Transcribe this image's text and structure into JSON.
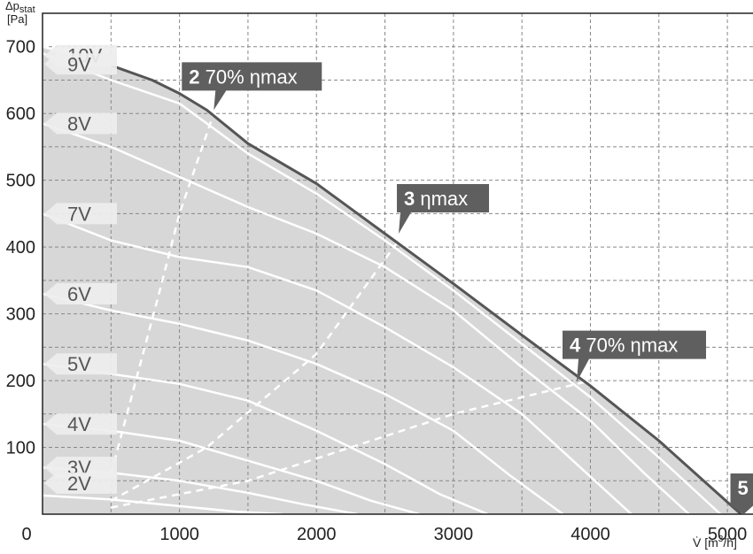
{
  "chart_data": {
    "type": "line",
    "xlabel": "V̇ [m³/h]",
    "ylabel": "Δp_stat [Pa]",
    "ylabel_top": "Δp",
    "ylabel_sub": "stat",
    "ylabel_unit": "[Pa]",
    "xlabel_prefix": "V̇ [m",
    "xlabel_sup": "3",
    "xlabel_suffix": "/h]",
    "xlim": [
      0,
      5200
    ],
    "ylim": [
      0,
      750
    ],
    "x_ticks": [
      0,
      1000,
      2000,
      3000,
      4000,
      5000
    ],
    "x_tick_labels": [
      "0",
      "1000",
      "2000",
      "3000",
      "4000",
      "5000"
    ],
    "y_ticks": [
      0,
      100,
      200,
      300,
      400,
      500,
      600,
      700
    ],
    "y_tick_labels": [
      "",
      "100",
      "200",
      "300",
      "400",
      "500",
      "600",
      "700"
    ],
    "grid": true,
    "envelope": {
      "x": [
        0,
        500,
        800,
        1000,
        1200,
        1500,
        2000,
        2500,
        3000,
        3500,
        4000,
        4500,
        5000,
        5100
      ],
      "y": [
        700,
        672,
        650,
        630,
        605,
        555,
        495,
        420,
        345,
        268,
        192,
        110,
        18,
        0
      ]
    },
    "series": [
      {
        "label": "10V",
        "x": [
          0,
          500,
          800,
          1000,
          1200,
          1500,
          2000,
          2500,
          3000,
          3500,
          4000,
          4500,
          5000,
          5100
        ],
        "y": [
          700,
          672,
          650,
          630,
          605,
          555,
          495,
          420,
          345,
          268,
          192,
          110,
          18,
          0
        ]
      },
      {
        "label": "9V",
        "x": [
          0,
          500,
          1000,
          1500,
          2000,
          2500,
          3000,
          3500,
          4000,
          4500,
          4950
        ],
        "y": [
          690,
          650,
          615,
          540,
          480,
          410,
          335,
          255,
          175,
          85,
          0
        ]
      },
      {
        "label": "8V",
        "x": [
          0,
          500,
          1000,
          1500,
          2000,
          2500,
          3000,
          3500,
          4000,
          4400,
          4720
        ],
        "y": [
          585,
          550,
          505,
          460,
          420,
          370,
          305,
          220,
          140,
          60,
          0
        ]
      },
      {
        "label": "7V",
        "x": [
          0,
          500,
          1000,
          1500,
          2000,
          2500,
          3000,
          3500,
          3900,
          4300
        ],
        "y": [
          450,
          410,
          385,
          370,
          335,
          280,
          220,
          150,
          75,
          0
        ]
      },
      {
        "label": "6V",
        "x": [
          0,
          500,
          1000,
          1500,
          2000,
          2500,
          3000,
          3400,
          3800
        ],
        "y": [
          330,
          305,
          285,
          260,
          225,
          180,
          125,
          60,
          0
        ]
      },
      {
        "label": "5V",
        "x": [
          0,
          500,
          1000,
          1500,
          2000,
          2500,
          2900,
          3250
        ],
        "y": [
          225,
          210,
          195,
          170,
          125,
          75,
          30,
          0
        ]
      },
      {
        "label": "4V",
        "x": [
          0,
          500,
          1000,
          1500,
          2000,
          2400,
          2750
        ],
        "y": [
          135,
          125,
          110,
          80,
          50,
          20,
          0
        ]
      },
      {
        "label": "3V",
        "x": [
          0,
          500,
          1000,
          1500,
          1900,
          2300
        ],
        "y": [
          70,
          62,
          50,
          32,
          15,
          0
        ]
      },
      {
        "label": "2V",
        "x": [
          0,
          500,
          1000,
          1400,
          1750
        ],
        "y": [
          28,
          22,
          12,
          4,
          0
        ]
      }
    ],
    "efficiency_lines": [
      {
        "x": [
          500,
          850,
          1000,
          1250
        ],
        "y": [
          60,
          330,
          450,
          600
        ]
      },
      {
        "x": [
          500,
          1200,
          2000,
          2600
        ],
        "y": [
          20,
          100,
          240,
          410
        ]
      },
      {
        "x": [
          500,
          1500,
          3000,
          4000
        ],
        "y": [
          10,
          50,
          150,
          200
        ]
      }
    ],
    "operating_points": [
      {
        "num": "2",
        "text": " 70% ηmax",
        "x": 1250,
        "y": 605
      },
      {
        "num": "3",
        "text": " ηmax",
        "x": 2600,
        "y": 420
      },
      {
        "num": "4",
        "text": " 70% ηmax",
        "x": 3900,
        "y": 198
      },
      {
        "num": "5",
        "text": "",
        "x": 5100,
        "y": 0
      }
    ],
    "colors": {
      "envelope_fill": "#d7d7d7",
      "curve": "#ffffff",
      "envelope_line": "#555555",
      "callout": "#5f5f5f",
      "voltage_tag": "#eeeeee",
      "grid": "#888888"
    }
  }
}
